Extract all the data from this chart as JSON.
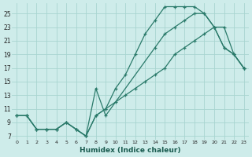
{
  "xlabel": "Humidex (Indice chaleur)",
  "bg_color": "#ceecea",
  "grid_color": "#a8d5d0",
  "line_color": "#2a7a6a",
  "xlim": [
    -0.5,
    23.5
  ],
  "ylim": [
    6.5,
    26.5
  ],
  "xticks": [
    0,
    1,
    2,
    3,
    4,
    5,
    6,
    7,
    8,
    9,
    10,
    11,
    12,
    13,
    14,
    15,
    16,
    17,
    18,
    19,
    20,
    21,
    22,
    23
  ],
  "yticks": [
    7,
    9,
    11,
    13,
    15,
    17,
    19,
    21,
    23,
    25
  ],
  "line1_x": [
    0,
    1,
    2,
    3,
    4,
    5,
    6,
    7,
    8,
    9,
    10,
    11,
    12,
    13,
    14,
    15,
    16,
    17,
    18,
    19,
    20,
    21,
    22,
    23
  ],
  "line1_y": [
    10,
    10,
    8,
    8,
    8,
    9,
    8,
    7,
    10,
    11,
    14,
    16,
    19,
    22,
    24,
    26,
    26,
    26,
    26,
    25,
    23,
    20,
    19,
    17
  ],
  "line2_x": [
    0,
    1,
    2,
    3,
    4,
    5,
    6,
    7,
    8,
    9,
    14,
    15,
    16,
    17,
    18,
    19,
    20,
    21,
    22,
    23
  ],
  "line2_y": [
    10,
    10,
    8,
    8,
    8,
    9,
    8,
    7,
    14,
    10,
    20,
    22,
    23,
    24,
    25,
    25,
    23,
    20,
    19,
    17
  ],
  "line3_x": [
    0,
    1,
    2,
    3,
    4,
    5,
    6,
    7,
    8,
    9,
    10,
    11,
    12,
    13,
    14,
    15,
    16,
    17,
    18,
    19,
    20,
    21,
    22,
    23
  ],
  "line3_y": [
    10,
    10,
    8,
    8,
    8,
    9,
    8,
    7,
    10,
    11,
    12,
    13,
    14,
    15,
    16,
    17,
    19,
    20,
    21,
    22,
    23,
    23,
    19,
    17
  ]
}
